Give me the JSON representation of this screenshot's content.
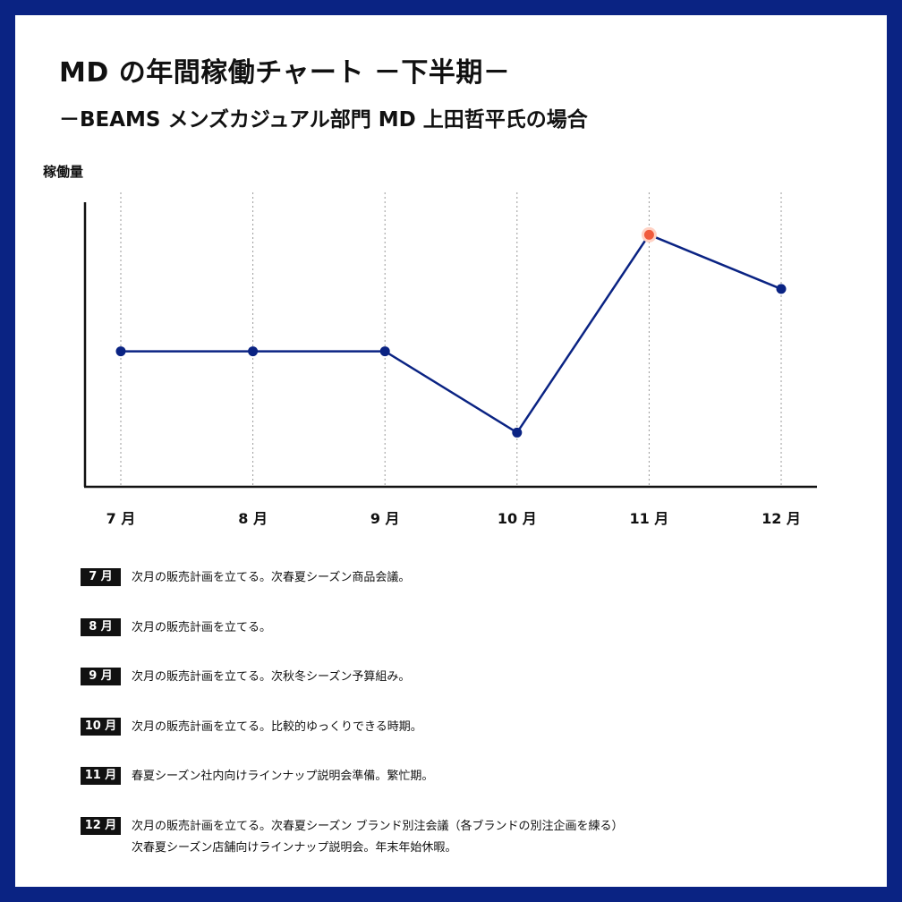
{
  "title": "MD の年間稼働チャート －下半期－",
  "subtitle": "－BEAMS メンズカジュアル部門 MD 上田哲平氏の場合",
  "chart_data": {
    "type": "line",
    "title": "MD の年間稼働チャート －下半期－",
    "xlabel": "",
    "ylabel": "稼働量",
    "categories": [
      "7 月",
      "8 月",
      "9 月",
      "10 月",
      "11 月",
      "12 月"
    ],
    "series": [
      {
        "values": [
          50,
          50,
          50,
          20,
          93,
          73
        ]
      }
    ],
    "ylim": [
      0,
      105
    ],
    "grid": "vertical dotted",
    "highlight": {
      "index": 4,
      "color": "#f05a3c"
    },
    "line_color": "#0a2383"
  },
  "notes": [
    {
      "month": "7 月",
      "lines": [
        "次月の販売計画を立てる。次春夏シーズン商品会議。"
      ]
    },
    {
      "month": "8 月",
      "lines": [
        "次月の販売計画を立てる。"
      ]
    },
    {
      "month": "9 月",
      "lines": [
        "次月の販売計画を立てる。次秋冬シーズン予算組み。"
      ]
    },
    {
      "month": "10 月",
      "lines": [
        "次月の販売計画を立てる。比較的ゆっくりできる時期。"
      ]
    },
    {
      "month": "11 月",
      "lines": [
        "春夏シーズン社内向けラインナップ説明会準備。繁忙期。"
      ]
    },
    {
      "month": "12 月",
      "lines": [
        "次月の販売計画を立てる。次春夏シーズン ブランド別注会議（各ブランドの別注企画を練る）",
        "次春夏シーズン店舗向けラインナップ説明会。年末年始休暇。"
      ]
    }
  ]
}
